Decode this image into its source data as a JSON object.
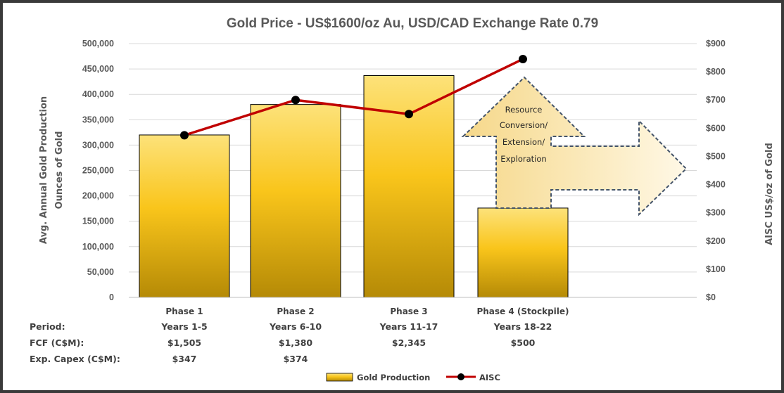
{
  "chart_data": {
    "type": "bar",
    "title": "Gold Price - US$1600/oz Au, USD/CAD Exchange Rate 0.79",
    "ylabel_left": [
      "Avg. Annual Gold Production",
      "Ounces of Gold"
    ],
    "ylabel_right": "AISC US$/oz of Gold",
    "ylim_left": [
      0,
      500000
    ],
    "ylim_right": [
      0,
      900
    ],
    "left_ticks": [
      "0",
      "50,000",
      "100,000",
      "150,000",
      "200,000",
      "250,000",
      "300,000",
      "350,000",
      "400,000",
      "450,000",
      "500,000"
    ],
    "right_ticks": [
      "$0",
      "$100",
      "$200",
      "$300",
      "$400",
      "$500",
      "$600",
      "$700",
      "$800",
      "$900"
    ],
    "categories": [
      "Phase 1",
      "Phase 2",
      "Phase 3",
      "Phase 4 (Stockpile)"
    ],
    "series": [
      {
        "name": "Gold Production",
        "type": "bar",
        "axis": "left",
        "color": "#F5C518",
        "values": [
          320000,
          380000,
          437000,
          176000
        ]
      },
      {
        "name": "AISC",
        "type": "line",
        "axis": "right",
        "color": "#C00000",
        "marker_color": "#000000",
        "values": [
          575,
          700,
          650,
          845
        ]
      }
    ],
    "grid": true,
    "legend_position": "bottom",
    "annotation": [
      "Resource",
      "Conversion/",
      "Extension/",
      "Exploration"
    ],
    "table": {
      "rows": [
        {
          "label": "Period:",
          "values": [
            "Years 1-5",
            "Years 6-10",
            "Years 11-17",
            "Years 18-22"
          ]
        },
        {
          "label": "FCF (C$M):",
          "values": [
            "$1,505",
            "$1,380",
            "$2,345",
            "$500"
          ]
        },
        {
          "label": "Exp. Capex (C$M):",
          "values": [
            "$347",
            "$374",
            "",
            ""
          ]
        }
      ]
    }
  }
}
